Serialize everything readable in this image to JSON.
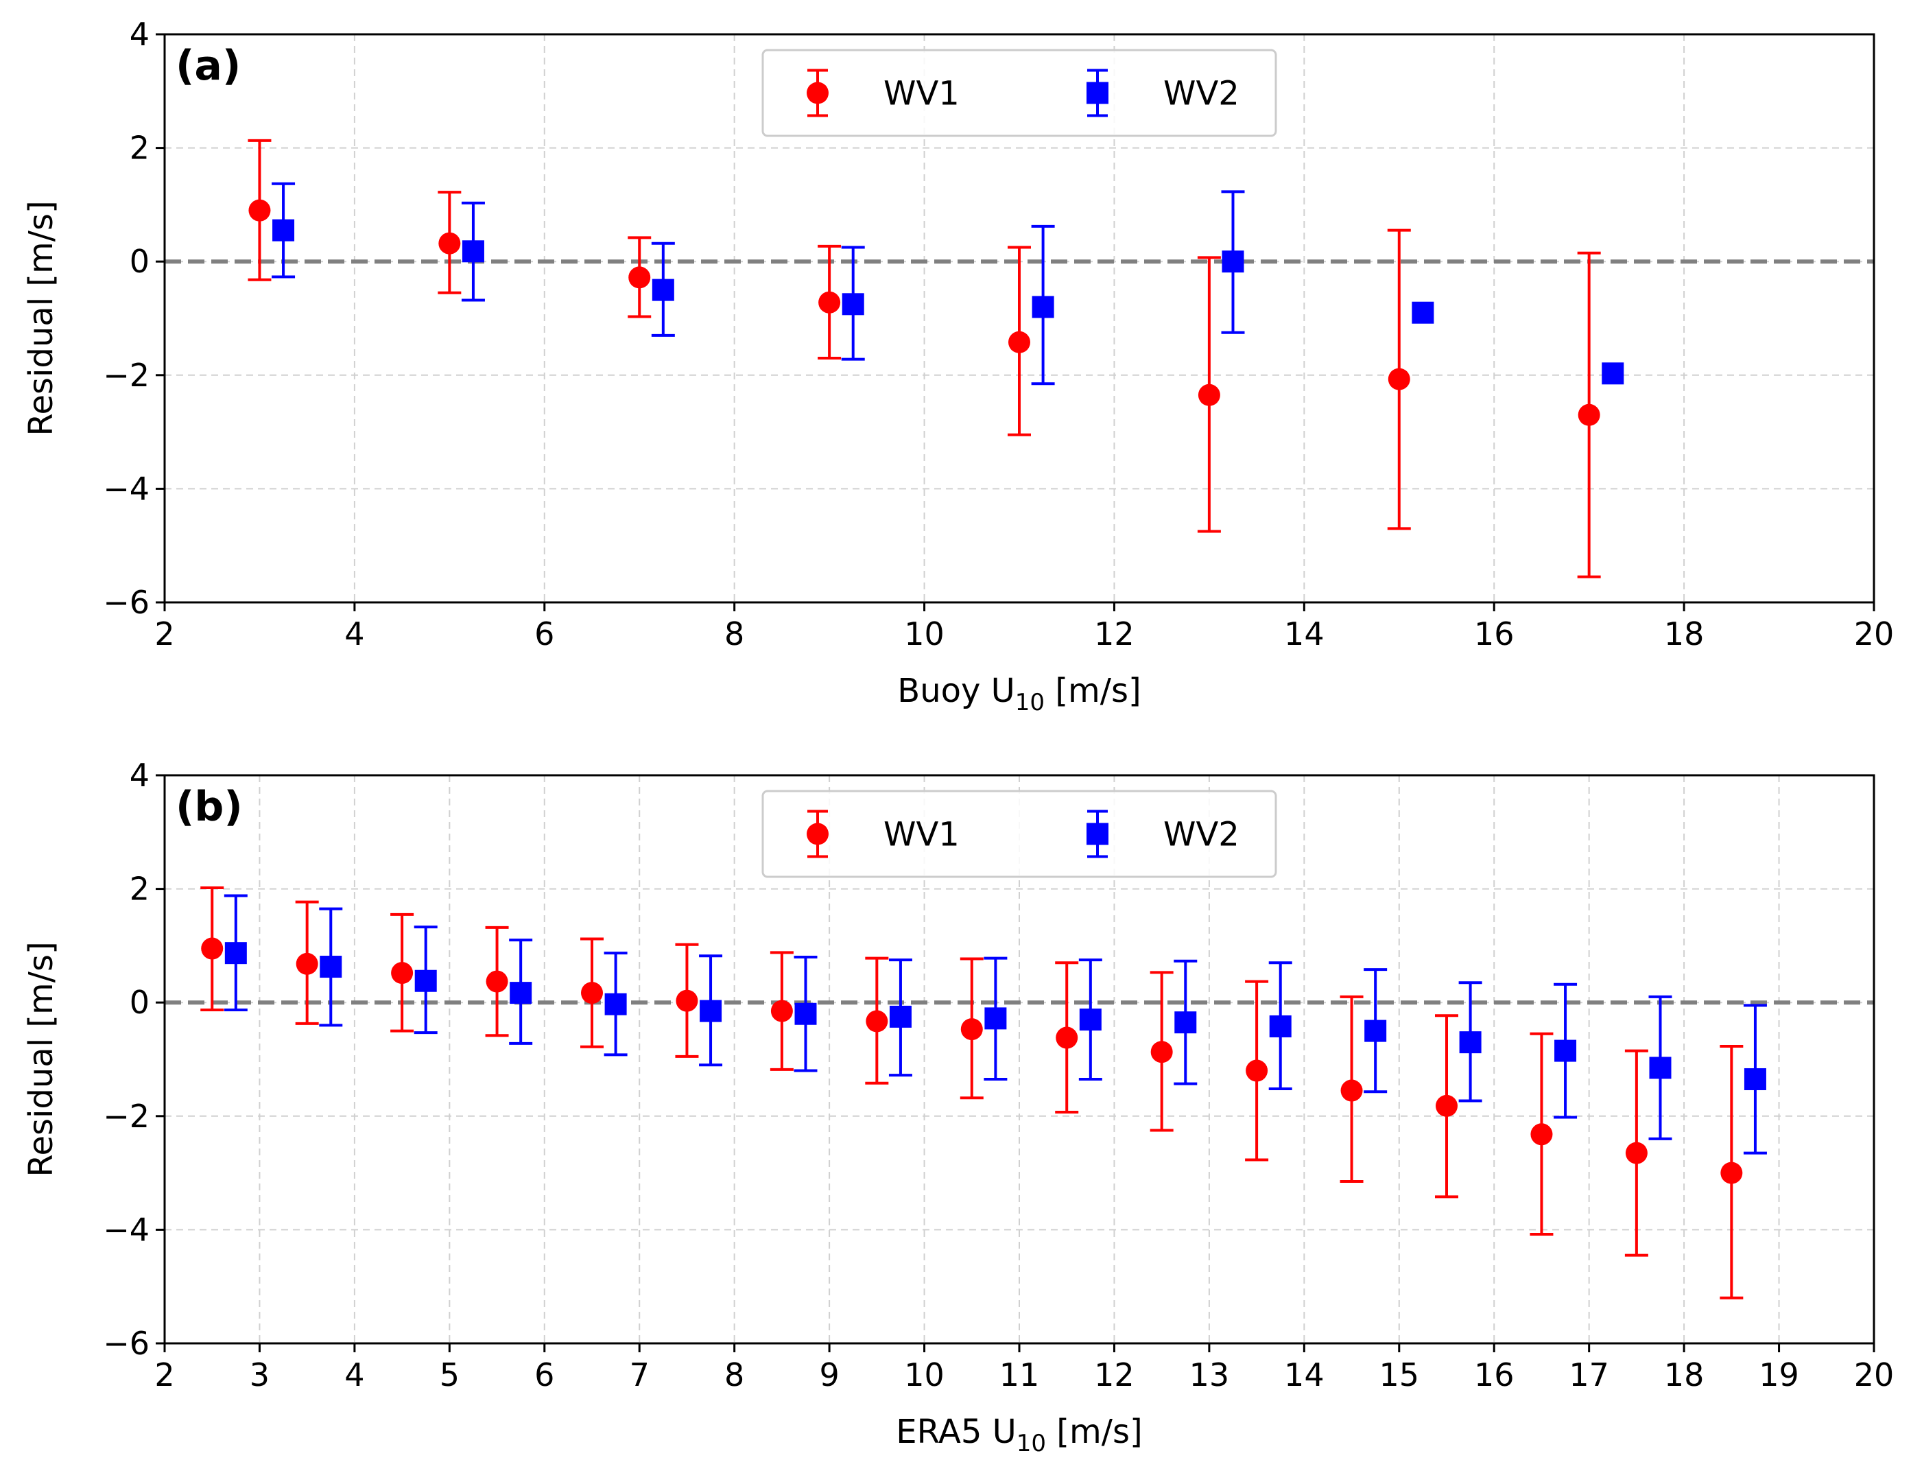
{
  "colors": {
    "wv1": "#ff0000",
    "wv2": "#0000ff",
    "zero_line": "#808080",
    "grid": "#d0d0d0"
  },
  "chart_data": [
    {
      "type": "scatter",
      "panel_label": "(a)",
      "xlabel": "Buoy U10 [m/s]",
      "xlabel_main": "Buoy U",
      "xlabel_sub": "10",
      "xlabel_unit": " [m/s]",
      "ylabel": "Residual [m/s]",
      "xlim": [
        2,
        20
      ],
      "ylim": [
        -6,
        4
      ],
      "xticks": [
        2,
        4,
        6,
        8,
        10,
        12,
        14,
        16,
        18,
        20
      ],
      "xtick_labels": [
        "2",
        "4",
        "6",
        "8",
        "10",
        "12",
        "14",
        "16",
        "18",
        "20"
      ],
      "yticks": [
        -6,
        -4,
        -2,
        0,
        2,
        4
      ],
      "ytick_labels": [
        "−6",
        "−4",
        "−2",
        "0",
        "2",
        "4"
      ],
      "grid": true,
      "zero_line": true,
      "legend_position": "top-center",
      "series": [
        {
          "name": "WV1",
          "marker": "circle",
          "x": [
            3,
            5,
            7,
            9,
            11,
            13,
            15,
            17
          ],
          "y": [
            0.9,
            0.32,
            -0.28,
            -0.72,
            -1.42,
            -2.35,
            -2.07,
            -2.7
          ],
          "err_low": [
            -0.32,
            -0.55,
            -0.97,
            -1.7,
            -3.05,
            -4.75,
            -4.7,
            -5.55
          ],
          "err_high": [
            2.13,
            1.22,
            0.42,
            0.27,
            0.25,
            0.07,
            0.55,
            0.15
          ]
        },
        {
          "name": "WV2",
          "marker": "square",
          "x": [
            3.25,
            5.25,
            7.25,
            9.25,
            11.25,
            13.25,
            15.25,
            17.25
          ],
          "y": [
            0.55,
            0.18,
            -0.5,
            -0.75,
            -0.8,
            0.0,
            -0.9,
            -1.97
          ],
          "err_low": [
            -0.27,
            -0.68,
            -1.3,
            -1.72,
            -2.15,
            -1.25,
            null,
            null
          ],
          "err_high": [
            1.37,
            1.03,
            0.32,
            0.25,
            0.62,
            1.23,
            null,
            null
          ]
        }
      ]
    },
    {
      "type": "scatter",
      "panel_label": "(b)",
      "xlabel": "ERA5 U10 [m/s]",
      "xlabel_main": "ERA5 U",
      "xlabel_sub": "10",
      "xlabel_unit": " [m/s]",
      "ylabel": "Residual [m/s]",
      "xlim": [
        2,
        20
      ],
      "ylim": [
        -6,
        4
      ],
      "xticks": [
        2,
        3,
        4,
        5,
        6,
        7,
        8,
        9,
        10,
        11,
        12,
        13,
        14,
        15,
        16,
        17,
        18,
        19,
        20
      ],
      "xtick_labels": [
        "2",
        "3",
        "4",
        "5",
        "6",
        "7",
        "8",
        "9",
        "10",
        "11",
        "12",
        "13",
        "14",
        "15",
        "16",
        "17",
        "18",
        "19",
        "20"
      ],
      "yticks": [
        -6,
        -4,
        -2,
        0,
        2,
        4
      ],
      "ytick_labels": [
        "−6",
        "−4",
        "−2",
        "0",
        "2",
        "4"
      ],
      "grid": true,
      "zero_line": true,
      "legend_position": "top-center",
      "series": [
        {
          "name": "WV1",
          "marker": "circle",
          "x": [
            2.5,
            3.5,
            4.5,
            5.5,
            6.5,
            7.5,
            8.5,
            9.5,
            10.5,
            11.5,
            12.5,
            13.5,
            14.5,
            15.5,
            16.5,
            17.5,
            18.5
          ],
          "y": [
            0.95,
            0.68,
            0.52,
            0.37,
            0.17,
            0.03,
            -0.15,
            -0.33,
            -0.47,
            -0.62,
            -0.87,
            -1.2,
            -1.55,
            -1.82,
            -2.32,
            -2.65,
            -3.0
          ],
          "err_low": [
            -0.13,
            -0.37,
            -0.5,
            -0.58,
            -0.78,
            -0.95,
            -1.18,
            -1.42,
            -1.68,
            -1.93,
            -2.25,
            -2.77,
            -3.15,
            -3.42,
            -4.08,
            -4.45,
            -5.2
          ],
          "err_high": [
            2.02,
            1.77,
            1.55,
            1.32,
            1.12,
            1.02,
            0.88,
            0.78,
            0.77,
            0.7,
            0.53,
            0.37,
            0.1,
            -0.23,
            -0.55,
            -0.85,
            -0.77
          ]
        },
        {
          "name": "WV2",
          "marker": "square",
          "x": [
            2.75,
            3.75,
            4.75,
            5.75,
            6.75,
            7.75,
            8.75,
            9.75,
            10.75,
            11.75,
            12.75,
            13.75,
            14.75,
            15.75,
            16.75,
            17.75,
            18.75
          ],
          "y": [
            0.87,
            0.63,
            0.38,
            0.17,
            -0.03,
            -0.15,
            -0.2,
            -0.25,
            -0.28,
            -0.3,
            -0.35,
            -0.42,
            -0.5,
            -0.7,
            -0.85,
            -1.15,
            -1.35
          ],
          "err_low": [
            -0.13,
            -0.4,
            -0.53,
            -0.72,
            -0.92,
            -1.1,
            -1.2,
            -1.28,
            -1.35,
            -1.35,
            -1.43,
            -1.52,
            -1.57,
            -1.73,
            -2.02,
            -2.4,
            -2.65
          ],
          "err_high": [
            1.88,
            1.65,
            1.33,
            1.1,
            0.87,
            0.82,
            0.8,
            0.75,
            0.78,
            0.75,
            0.73,
            0.7,
            0.58,
            0.35,
            0.32,
            0.1,
            -0.05
          ]
        }
      ]
    }
  ]
}
